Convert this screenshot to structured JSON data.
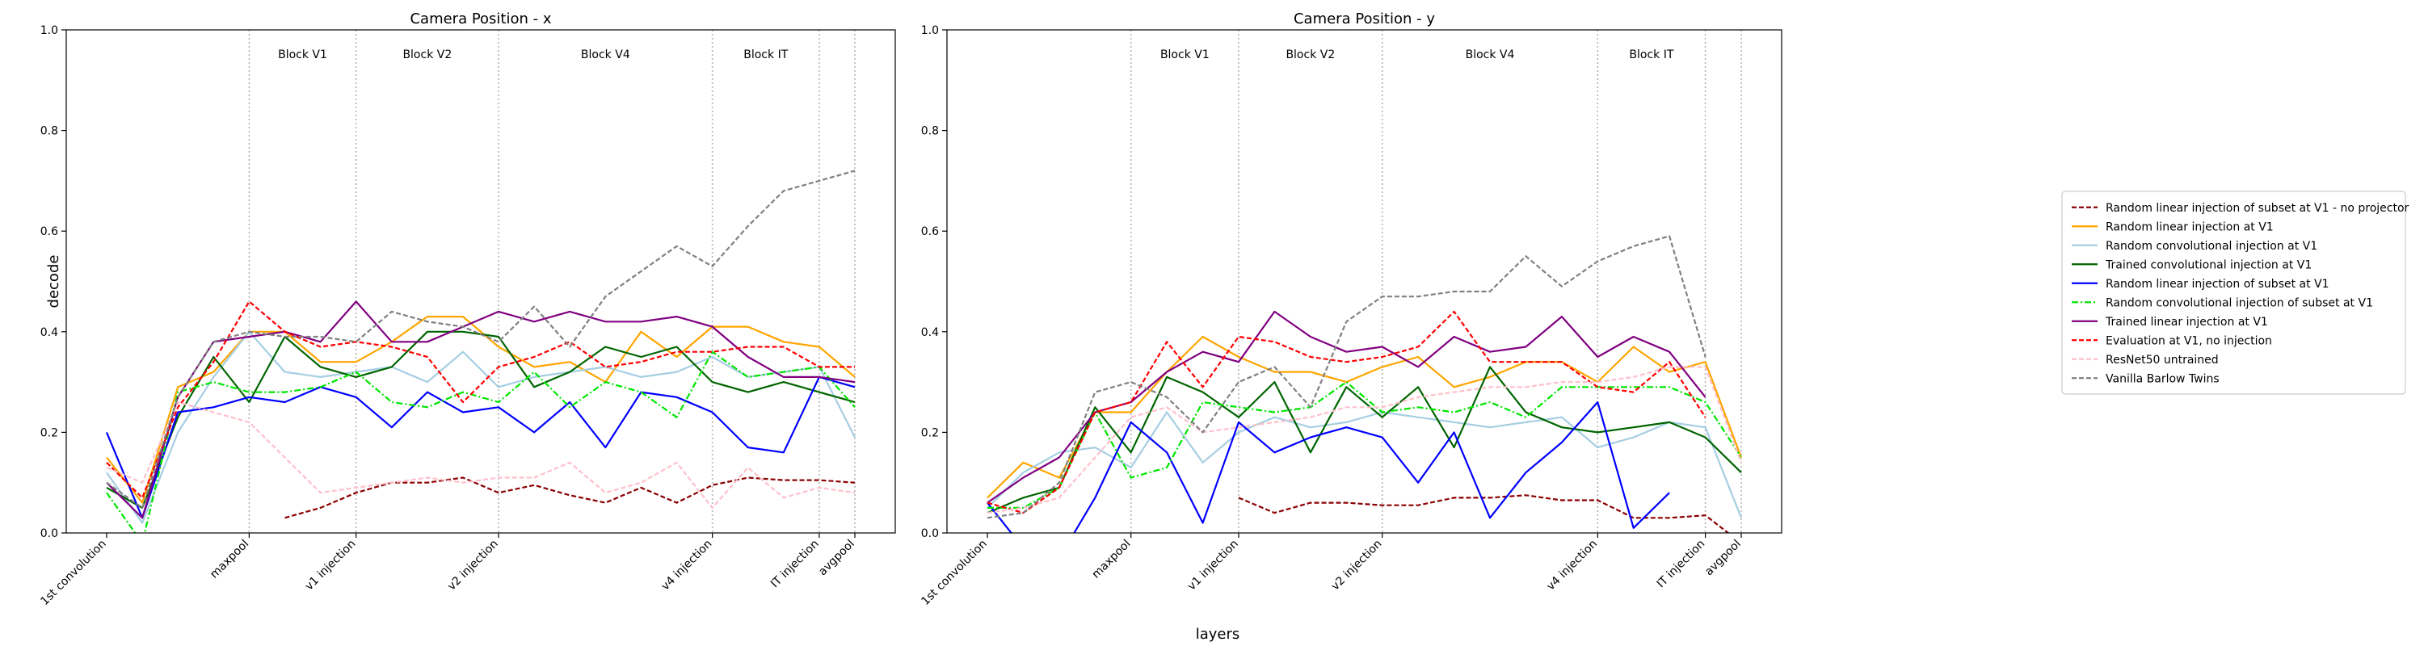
{
  "figure": {
    "xlabel": "layers",
    "ylabel": "decode"
  },
  "chart_data": [
    {
      "type": "line",
      "title": "Camera Position - x",
      "ylabel": "decode",
      "ylim": [
        0,
        1
      ],
      "yticks": [
        "0.0",
        "0.2",
        "0.4",
        "0.6",
        "0.8",
        "1.0"
      ],
      "xticks": [
        {
          "i": 0,
          "label": "1st convolution"
        },
        {
          "i": 4,
          "label": "maxpool"
        },
        {
          "i": 7,
          "label": "v1 injection"
        },
        {
          "i": 11,
          "label": "v2 injection"
        },
        {
          "i": 17,
          "label": "v4 injection"
        },
        {
          "i": 20,
          "label": "IT injection"
        },
        {
          "i": 21,
          "label": "avgpool"
        }
      ],
      "boundaries": [
        4,
        7,
        11,
        17,
        20,
        21
      ],
      "blocks": [
        {
          "label": "Block V1",
          "at": 5.5
        },
        {
          "label": "Block V2",
          "at": 9
        },
        {
          "label": "Block V4",
          "at": 14
        },
        {
          "label": "Block IT",
          "at": 18.5
        }
      ],
      "series": [
        {
          "name": "Random linear injection of subset at V1 - no projector",
          "values": [
            null,
            null,
            null,
            null,
            null,
            0.03,
            0.05,
            0.08,
            0.1,
            0.1,
            0.11,
            0.08,
            0.095,
            0.075,
            0.06,
            0.09,
            0.06,
            0.095,
            0.11,
            0.105,
            0.105,
            0.1
          ]
        },
        {
          "name": "Random linear injection at V1",
          "values": [
            0.15,
            0.06,
            0.29,
            0.32,
            0.4,
            0.4,
            0.34,
            0.34,
            0.38,
            0.43,
            0.43,
            0.37,
            0.33,
            0.34,
            0.3,
            0.4,
            0.35,
            0.41,
            0.41,
            0.38,
            0.37,
            0.31
          ]
        },
        {
          "name": "Random convolutional injection at V1",
          "values": [
            0.12,
            0.02,
            0.2,
            0.31,
            0.4,
            0.32,
            0.31,
            0.32,
            0.33,
            0.3,
            0.36,
            0.29,
            0.31,
            0.32,
            0.33,
            0.31,
            0.32,
            0.35,
            0.31,
            0.32,
            0.33,
            0.19
          ]
        },
        {
          "name": "Trained convolutional injection at V1",
          "values": [
            0.09,
            0.05,
            0.23,
            0.35,
            0.26,
            0.39,
            0.33,
            0.31,
            0.33,
            0.4,
            0.4,
            0.39,
            0.29,
            0.32,
            0.37,
            0.35,
            0.37,
            0.3,
            0.28,
            0.3,
            0.28,
            0.26
          ]
        },
        {
          "name": "Random linear injection of subset at V1",
          "values": [
            0.2,
            0.03,
            0.24,
            0.25,
            0.27,
            0.26,
            0.29,
            0.27,
            0.21,
            0.28,
            0.24,
            0.25,
            0.2,
            0.26,
            0.17,
            0.28,
            0.27,
            0.24,
            0.17,
            0.16,
            0.31,
            0.29
          ]
        },
        {
          "name": "Random convolutional injection of subset at V1",
          "values": [
            0.08,
            -0.02,
            0.28,
            0.3,
            0.28,
            0.28,
            0.29,
            0.32,
            0.26,
            0.25,
            0.28,
            0.26,
            0.32,
            0.25,
            0.3,
            0.28,
            0.23,
            0.36,
            0.31,
            0.32,
            0.33,
            0.25
          ]
        },
        {
          "name": "Trained linear injection at V1",
          "values": [
            0.1,
            0.03,
            0.27,
            0.38,
            0.39,
            0.4,
            0.38,
            0.46,
            0.38,
            0.38,
            0.41,
            0.44,
            0.42,
            0.44,
            0.42,
            0.42,
            0.43,
            0.41,
            0.35,
            0.31,
            0.31,
            0.3
          ]
        },
        {
          "name": "Evaluation at V1, no injection",
          "values": [
            0.14,
            0.07,
            0.25,
            0.34,
            0.46,
            0.4,
            0.37,
            0.38,
            0.37,
            0.35,
            0.26,
            0.33,
            0.35,
            0.38,
            0.33,
            0.34,
            0.36,
            0.36,
            0.37,
            0.37,
            0.33,
            0.33
          ]
        },
        {
          "name": "ResNet50 untrained",
          "values": [
            0.13,
            0.1,
            0.26,
            0.24,
            0.22,
            0.15,
            0.08,
            0.09,
            0.1,
            0.11,
            0.1,
            0.11,
            0.11,
            0.14,
            0.08,
            0.1,
            0.14,
            0.05,
            0.13,
            0.07,
            0.09,
            0.08
          ]
        },
        {
          "name": "Vanilla Barlow Twins",
          "values": [
            0.1,
            0.05,
            0.27,
            0.38,
            0.4,
            0.39,
            0.39,
            0.38,
            0.44,
            0.42,
            0.41,
            0.38,
            0.45,
            0.37,
            0.47,
            0.52,
            0.57,
            0.53,
            0.61,
            0.68,
            0.7,
            0.72
          ]
        }
      ]
    },
    {
      "type": "line",
      "title": "Camera Position - y",
      "ylim": [
        0,
        1
      ],
      "yticks": [
        "0.0",
        "0.2",
        "0.4",
        "0.6",
        "0.8",
        "1.0"
      ],
      "xticks": [
        {
          "i": 0,
          "label": "1st convolution"
        },
        {
          "i": 4,
          "label": "maxpool"
        },
        {
          "i": 7,
          "label": "v1 injection"
        },
        {
          "i": 11,
          "label": "v2 injection"
        },
        {
          "i": 17,
          "label": "v4 injection"
        },
        {
          "i": 20,
          "label": "IT injection"
        },
        {
          "i": 21,
          "label": "avgpool"
        }
      ],
      "boundaries": [
        4,
        7,
        11,
        17,
        20,
        21
      ],
      "blocks": [
        {
          "label": "Block V1",
          "at": 5.5
        },
        {
          "label": "Block V2",
          "at": 9
        },
        {
          "label": "Block V4",
          "at": 14
        },
        {
          "label": "Block IT",
          "at": 18.5
        }
      ],
      "series": [
        {
          "name": "Random linear injection of subset at V1 - no projector",
          "values": [
            null,
            null,
            null,
            null,
            null,
            null,
            null,
            0.07,
            0.04,
            0.06,
            0.06,
            0.055,
            0.055,
            0.07,
            0.07,
            0.075,
            0.065,
            0.065,
            0.03,
            0.03,
            0.035,
            -0.02
          ]
        },
        {
          "name": "Random linear injection at V1",
          "values": [
            0.07,
            0.14,
            0.11,
            0.24,
            0.24,
            0.32,
            0.39,
            0.35,
            0.32,
            0.32,
            0.3,
            0.33,
            0.35,
            0.29,
            0.31,
            0.34,
            0.34,
            0.3,
            0.37,
            0.32,
            0.34,
            0.15
          ]
        },
        {
          "name": "Random convolutional injection at V1",
          "values": [
            0.05,
            0.12,
            0.16,
            0.17,
            0.13,
            0.24,
            0.14,
            0.2,
            0.23,
            0.21,
            0.22,
            0.24,
            0.23,
            0.22,
            0.21,
            0.22,
            0.23,
            0.17,
            0.19,
            0.22,
            0.21,
            0.03
          ]
        },
        {
          "name": "Trained convolutional injection at V1",
          "values": [
            0.04,
            0.07,
            0.09,
            0.25,
            0.16,
            0.31,
            0.28,
            0.23,
            0.3,
            0.16,
            0.29,
            0.23,
            0.29,
            0.17,
            0.33,
            0.24,
            0.21,
            0.2,
            0.21,
            0.22,
            0.19,
            0.12
          ]
        },
        {
          "name": "Random linear injection of subset at V1",
          "values": [
            0.06,
            -0.03,
            -0.05,
            0.07,
            0.22,
            0.16,
            0.02,
            0.22,
            0.16,
            0.19,
            0.21,
            0.19,
            0.1,
            0.2,
            0.03,
            0.12,
            0.18,
            0.26,
            0.01,
            0.08,
            null,
            null
          ]
        },
        {
          "name": "Random convolutional injection of subset at V1",
          "values": [
            0.05,
            0.05,
            0.09,
            0.24,
            0.11,
            0.13,
            0.26,
            0.25,
            0.24,
            0.25,
            0.3,
            0.24,
            0.25,
            0.24,
            0.26,
            0.23,
            0.29,
            0.29,
            0.29,
            0.29,
            0.26,
            0.15
          ]
        },
        {
          "name": "Trained linear injection at V1",
          "values": [
            0.06,
            0.11,
            0.15,
            0.24,
            0.26,
            0.32,
            0.36,
            0.34,
            0.44,
            0.39,
            0.36,
            0.37,
            0.33,
            0.39,
            0.36,
            0.37,
            0.43,
            0.35,
            0.39,
            0.36,
            0.27,
            null
          ]
        },
        {
          "name": "Evaluation at V1, no injection",
          "values": [
            0.06,
            0.04,
            0.09,
            0.24,
            0.26,
            0.38,
            0.29,
            0.39,
            0.38,
            0.35,
            0.34,
            0.35,
            0.37,
            0.44,
            0.34,
            0.34,
            0.34,
            0.29,
            0.28,
            0.34,
            0.23,
            null
          ]
        },
        {
          "name": "ResNet50 untrained",
          "values": [
            0.04,
            0.05,
            0.07,
            0.15,
            0.23,
            0.25,
            0.2,
            0.21,
            0.22,
            0.23,
            0.25,
            0.25,
            0.27,
            0.28,
            0.29,
            0.29,
            0.3,
            0.3,
            0.31,
            0.33,
            0.33,
            0.14
          ]
        },
        {
          "name": "Vanilla Barlow Twins",
          "values": [
            0.03,
            0.04,
            0.1,
            0.28,
            0.3,
            0.27,
            0.2,
            0.3,
            0.33,
            0.25,
            0.42,
            0.47,
            0.47,
            0.48,
            0.48,
            0.55,
            0.49,
            0.54,
            0.57,
            0.59,
            0.35,
            null
          ]
        }
      ]
    }
  ],
  "legend": {
    "placement": "right",
    "entries": [
      {
        "label": "Random linear injection of subset at V1 - no projector",
        "color": "#8b0000",
        "dash": "6,3"
      },
      {
        "label": "Random linear injection at V1",
        "color": "#ffa500",
        "dash": ""
      },
      {
        "label": "Random convolutional injection at V1",
        "color": "#a6cee3",
        "dash": ""
      },
      {
        "label": "Trained convolutional injection at V1",
        "color": "#006400",
        "dash": ""
      },
      {
        "label": "Random linear injection of subset at V1",
        "color": "#0000ff",
        "dash": ""
      },
      {
        "label": "Random convolutional injection of subset at V1",
        "color": "#00e600",
        "dash": "8,3,2,3"
      },
      {
        "label": "Trained linear injection at V1",
        "color": "#800080",
        "dash": ""
      },
      {
        "label": "Evaluation at V1, no injection",
        "color": "#ff0000",
        "dash": "6,3"
      },
      {
        "label": "ResNet50 untrained",
        "color": "#ffc0cb",
        "dash": "6,3"
      },
      {
        "label": "Vanilla Barlow Twins",
        "color": "#808080",
        "dash": "6,3"
      }
    ]
  }
}
